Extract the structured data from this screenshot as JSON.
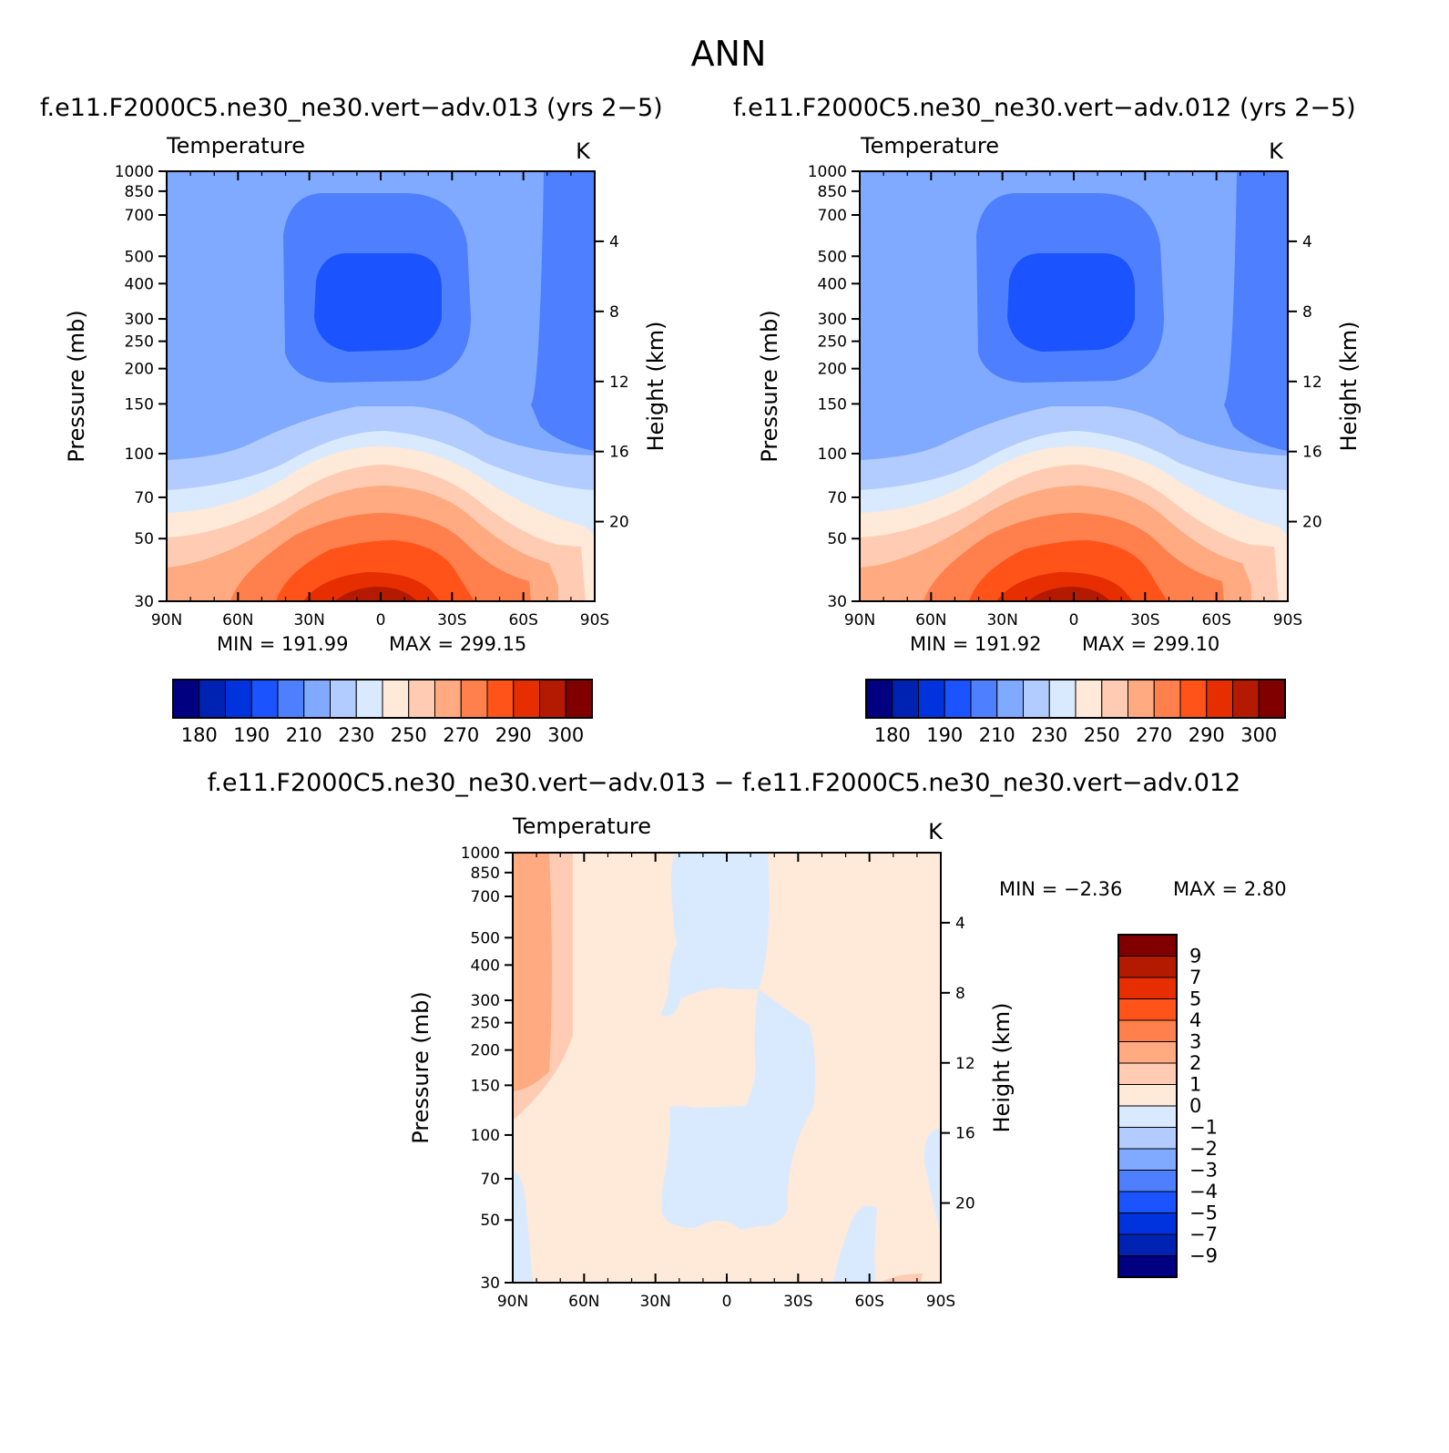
{
  "figure": {
    "title": "ANN"
  },
  "panels": [
    {
      "title": "f.e11.F2000C5.ne30_ne30.vert−adv.013 (yrs 2−5)",
      "left_label": "Temperature",
      "units": "K",
      "min_label": "MIN  =  191.99",
      "max_label": "MAX  =  299.15",
      "colorbar_labels": [
        "180",
        "190",
        "210",
        "230",
        "250",
        "270",
        "290",
        "300"
      ]
    },
    {
      "title": "f.e11.F2000C5.ne30_ne30.vert−adv.012 (yrs 2−5)",
      "left_label": "Temperature",
      "units": "K",
      "min_label": "MIN  =  191.92",
      "max_label": "MAX  =  299.10",
      "colorbar_labels": [
        "180",
        "190",
        "210",
        "230",
        "250",
        "270",
        "290",
        "300"
      ]
    },
    {
      "title": "f.e11.F2000C5.ne30_ne30.vert−adv.013 − f.e11.F2000C5.ne30_ne30.vert−adv.012",
      "left_label": "Temperature",
      "units": "K",
      "min_label": "MIN  =    −2.36",
      "max_label": "MAX  =     2.80",
      "colorbar_labels": [
        "9",
        "7",
        "5",
        "4",
        "3",
        "2",
        "1",
        "0",
        "−1",
        "−2",
        "−3",
        "−4",
        "−5",
        "−7",
        "−9"
      ]
    }
  ],
  "chart_data": [
    {
      "type": "heatmap",
      "subtype": "filled-contour",
      "title": "f.e11.F2000C5.ne30_ne30.vert−adv.013 (yrs 2−5)",
      "ylabel": "Pressure  (mb)",
      "ylabel_right": "Height  (km)",
      "x_ticklabels": [
        "90N",
        "60N",
        "30N",
        "0",
        "30S",
        "60S",
        "90S"
      ],
      "y_ticklabels": [
        "30",
        "50",
        "70",
        "100",
        "150",
        "200",
        "250",
        "300",
        "400",
        "500",
        "700",
        "850",
        "1000"
      ],
      "y_scale": "log",
      "ylim": [
        1000,
        30
      ],
      "y_right_ticklabels": [
        "20",
        "16",
        "12",
        "8",
        "4"
      ],
      "min": 191.99,
      "max": 299.15,
      "levels": [
        180,
        190,
        200,
        210,
        220,
        230,
        240,
        250,
        260,
        270,
        280,
        290,
        295,
        300
      ],
      "colors": [
        "#000080",
        "#0022b3",
        "#0033dd",
        "#1a53ff",
        "#4d7fff",
        "#80aaff",
        "#b3ccff",
        "#d9eaff",
        "#ffe9d9",
        "#ffccb3",
        "#ffaa80",
        "#ff7f4d",
        "#ff531a",
        "#e62e00",
        "#b31a00",
        "#800000"
      ]
    },
    {
      "type": "heatmap",
      "subtype": "filled-contour",
      "title": "f.e11.F2000C5.ne30_ne30.vert−adv.012 (yrs 2−5)",
      "ylabel": "Pressure  (mb)",
      "ylabel_right": "Height  (km)",
      "x_ticklabels": [
        "90N",
        "60N",
        "30N",
        "0",
        "30S",
        "60S",
        "90S"
      ],
      "y_ticklabels": [
        "30",
        "50",
        "70",
        "100",
        "150",
        "200",
        "250",
        "300",
        "400",
        "500",
        "700",
        "850",
        "1000"
      ],
      "y_scale": "log",
      "ylim": [
        1000,
        30
      ],
      "y_right_ticklabels": [
        "20",
        "16",
        "12",
        "8",
        "4"
      ],
      "min": 191.92,
      "max": 299.1,
      "levels": [
        180,
        190,
        200,
        210,
        220,
        230,
        240,
        250,
        260,
        270,
        280,
        290,
        295,
        300
      ],
      "colors": [
        "#000080",
        "#0022b3",
        "#0033dd",
        "#1a53ff",
        "#4d7fff",
        "#80aaff",
        "#b3ccff",
        "#d9eaff",
        "#ffe9d9",
        "#ffccb3",
        "#ffaa80",
        "#ff7f4d",
        "#ff531a",
        "#e62e00",
        "#b31a00",
        "#800000"
      ]
    },
    {
      "type": "heatmap",
      "subtype": "filled-contour",
      "title": "f.e11.F2000C5.ne30_ne30.vert−adv.013 − f.e11.F2000C5.ne30_ne30.vert−adv.012",
      "ylabel": "Pressure  (mb)",
      "ylabel_right": "Height  (km)",
      "x_ticklabels": [
        "90N",
        "60N",
        "30N",
        "0",
        "30S",
        "60S",
        "90S"
      ],
      "y_ticklabels": [
        "30",
        "50",
        "70",
        "100",
        "150",
        "200",
        "250",
        "300",
        "400",
        "500",
        "700",
        "850",
        "1000"
      ],
      "y_scale": "log",
      "ylim": [
        1000,
        30
      ],
      "y_right_ticklabels": [
        "20",
        "16",
        "12",
        "8",
        "4"
      ],
      "min": -2.36,
      "max": 2.8,
      "levels": [
        9,
        7,
        5,
        4,
        3,
        2,
        1,
        0,
        -1,
        -2,
        -3,
        -4,
        -5,
        -7,
        -9
      ],
      "colors": [
        "#800000",
        "#b31a00",
        "#e62e00",
        "#ff531a",
        "#ff7f4d",
        "#ffaa80",
        "#ffccb3",
        "#ffe9d9",
        "#d9eaff",
        "#b3ccff",
        "#80aaff",
        "#4d7fff",
        "#1a53ff",
        "#0033dd",
        "#0022b3",
        "#000080"
      ]
    }
  ]
}
